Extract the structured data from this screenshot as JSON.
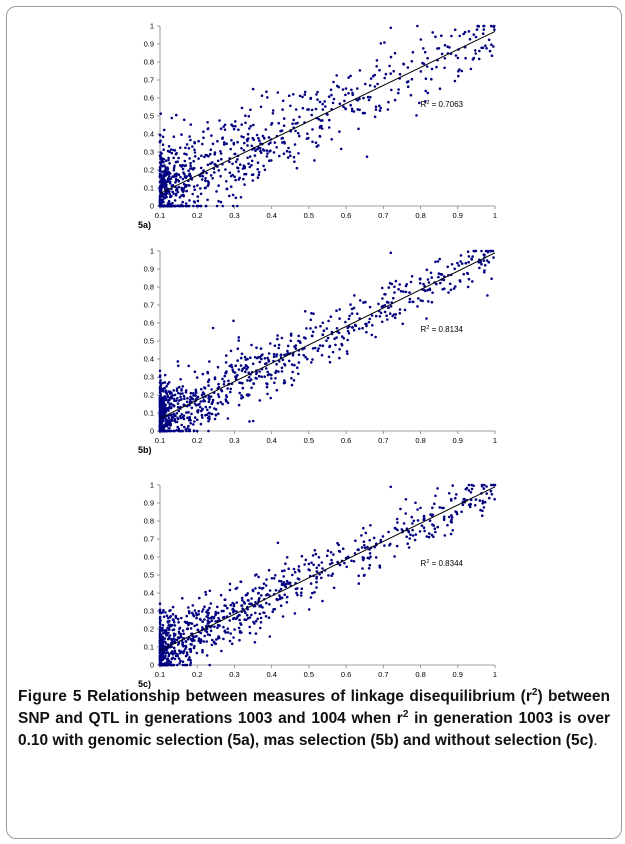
{
  "figure": {
    "label": "Figure 5",
    "caption_parts": [
      " Relationship between measures of linkage disequilibrium (r",
      "2",
      ") between SNP and QTL in generations 1003 and 1004 when r",
      "2",
      " in generation 1003 is over 0.10 with genomic selection (5a), mas selection (5b) and without selection (5c)",
      "."
    ]
  },
  "colors": {
    "points": "#000080",
    "trend": "#000000",
    "axis": "#808080"
  },
  "chart_data": [
    {
      "type": "scatter",
      "panel_label": "5a)",
      "r2_label": "R",
      "r2_sup": "2",
      "r2_value": " = 0.7063",
      "xlim": [
        0.1,
        1
      ],
      "ylim": [
        0,
        1
      ],
      "xticks": [
        "0.1",
        "0.2",
        "0.3",
        "0.4",
        "0.5",
        "0.6",
        "0.7",
        "0.8",
        "0.9",
        "1"
      ],
      "yticks": [
        "0",
        "0.1",
        "0.2",
        "0.3",
        "0.4",
        "0.5",
        "0.6",
        "0.7",
        "0.8",
        "0.9",
        "1"
      ],
      "trendline": {
        "x": [
          0.1,
          1
        ],
        "y": [
          0.07,
          0.97
        ]
      },
      "grid": false,
      "legend": "none",
      "n_points": 900,
      "noise": 0.1
    },
    {
      "type": "scatter",
      "panel_label": "5b)",
      "r2_label": "R",
      "r2_sup": "2",
      "r2_value": " = 0.8134",
      "xlim": [
        0.1,
        1
      ],
      "ylim": [
        0,
        1
      ],
      "xticks": [
        "0.1",
        "0.2",
        "0.3",
        "0.4",
        "0.5",
        "0.6",
        "0.7",
        "0.8",
        "0.9",
        "1"
      ],
      "yticks": [
        "0",
        "0.1",
        "0.2",
        "0.3",
        "0.4",
        "0.5",
        "0.6",
        "0.7",
        "0.8",
        "0.9",
        "1"
      ],
      "trendline": {
        "x": [
          0.1,
          1
        ],
        "y": [
          0.07,
          0.99
        ]
      },
      "grid": false,
      "legend": "none",
      "n_points": 950,
      "noise": 0.075
    },
    {
      "type": "scatter",
      "panel_label": "5c)",
      "r2_label": "R",
      "r2_sup": "2",
      "r2_value": " = 0.8344",
      "xlim": [
        0.1,
        1
      ],
      "ylim": [
        0,
        1
      ],
      "xticks": [
        "0.1",
        "0.2",
        "0.3",
        "0.4",
        "0.5",
        "0.6",
        "0.7",
        "0.8",
        "0.9",
        "1"
      ],
      "yticks": [
        "0",
        "0.1",
        "0.2",
        "0.3",
        "0.4",
        "0.5",
        "0.6",
        "0.7",
        "0.8",
        "0.9",
        "1"
      ],
      "trendline": {
        "x": [
          0.1,
          1
        ],
        "y": [
          0.08,
          0.99
        ]
      },
      "grid": false,
      "legend": "none",
      "n_points": 950,
      "noise": 0.07
    }
  ]
}
